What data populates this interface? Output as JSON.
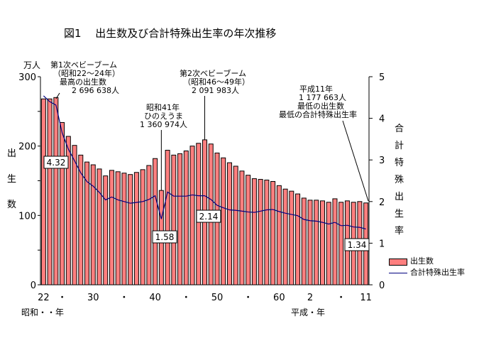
{
  "chart_data": {
    "type": "bar+line",
    "title": "図1　 出生数及び合計特殊出生率の年次推移",
    "left_axis": {
      "unit": "万人",
      "label": "出生数",
      "range": [
        0,
        300
      ],
      "ticks": [
        "0",
        "100",
        "200",
        "300"
      ]
    },
    "right_axis": {
      "label": "合計特殊出生率",
      "range": [
        0,
        5
      ],
      "ticks": [
        "0",
        "1",
        "2",
        "3",
        "4",
        "5"
      ]
    },
    "x_start": "昭和22年",
    "x_end": "平成11年",
    "x_tick_labels": [
      {
        "index": 0,
        "label": "22"
      },
      {
        "index": 3,
        "label": "・"
      },
      {
        "index": 8,
        "label": "30"
      },
      {
        "index": 13,
        "label": "・"
      },
      {
        "index": 18,
        "label": "40"
      },
      {
        "index": 23,
        "label": "・"
      },
      {
        "index": 28,
        "label": "50"
      },
      {
        "index": 33,
        "label": "・"
      },
      {
        "index": 38,
        "label": "60"
      },
      {
        "index": 43,
        "label": "2"
      },
      {
        "index": 48,
        "label": "・"
      },
      {
        "index": 52,
        "label": "11"
      }
    ],
    "x_era_labels": [
      "昭和・・年",
      "平成・年"
    ],
    "series": [
      {
        "name": "出生数",
        "type": "bar",
        "color": "#ff7f7f",
        "values": [
          268,
          268,
          270,
          234,
          214,
          201,
          187,
          177,
          173,
          167,
          157,
          165,
          163,
          161,
          159,
          162,
          166,
          172,
          182,
          136,
          194,
          187,
          189,
          193,
          200,
          204,
          209,
          203,
          190,
          183,
          176,
          171,
          164,
          158,
          153,
          152,
          151,
          149,
          143,
          138,
          135,
          131,
          125,
          122,
          122,
          121,
          119,
          124,
          119,
          121,
          119,
          120,
          118
        ]
      },
      {
        "name": "合計特殊出生率",
        "type": "line",
        "color": "#000080",
        "values": [
          4.54,
          4.4,
          4.32,
          3.65,
          3.26,
          2.98,
          2.69,
          2.48,
          2.37,
          2.22,
          2.04,
          2.11,
          2.04,
          2.0,
          1.96,
          1.98,
          2.0,
          2.05,
          2.14,
          1.58,
          2.23,
          2.13,
          2.13,
          2.13,
          2.16,
          2.14,
          2.14,
          2.05,
          1.91,
          1.85,
          1.8,
          1.79,
          1.77,
          1.75,
          1.74,
          1.77,
          1.8,
          1.81,
          1.76,
          1.72,
          1.69,
          1.66,
          1.57,
          1.54,
          1.53,
          1.5,
          1.46,
          1.5,
          1.42,
          1.43,
          1.39,
          1.38,
          1.34
        ]
      }
    ],
    "value_labels": [
      {
        "index": 2,
        "text": "4.32"
      },
      {
        "index": 19,
        "text": "1.58"
      },
      {
        "index": 25,
        "text": "2.14"
      },
      {
        "index": 52,
        "text": "1.34"
      }
    ],
    "annotations": {
      "boom1": [
        "第1次ベビーブーム",
        "（昭和22〜24年）",
        "最高の出生数",
        "2 696 638人"
      ],
      "hinoe": [
        "昭和41年",
        "ひのえうま",
        "1 360 974人"
      ],
      "boom2": [
        "第2次ベビーブーム",
        "（昭和46〜49年）",
        "2 091 983人"
      ],
      "h11": [
        "平成11年",
        "1 177 663人",
        "最低の出生数",
        "最低の合計特殊出生率"
      ]
    },
    "legend": {
      "placement": "bottom-right",
      "items": [
        "出生数",
        "合計特殊出生率"
      ]
    }
  }
}
